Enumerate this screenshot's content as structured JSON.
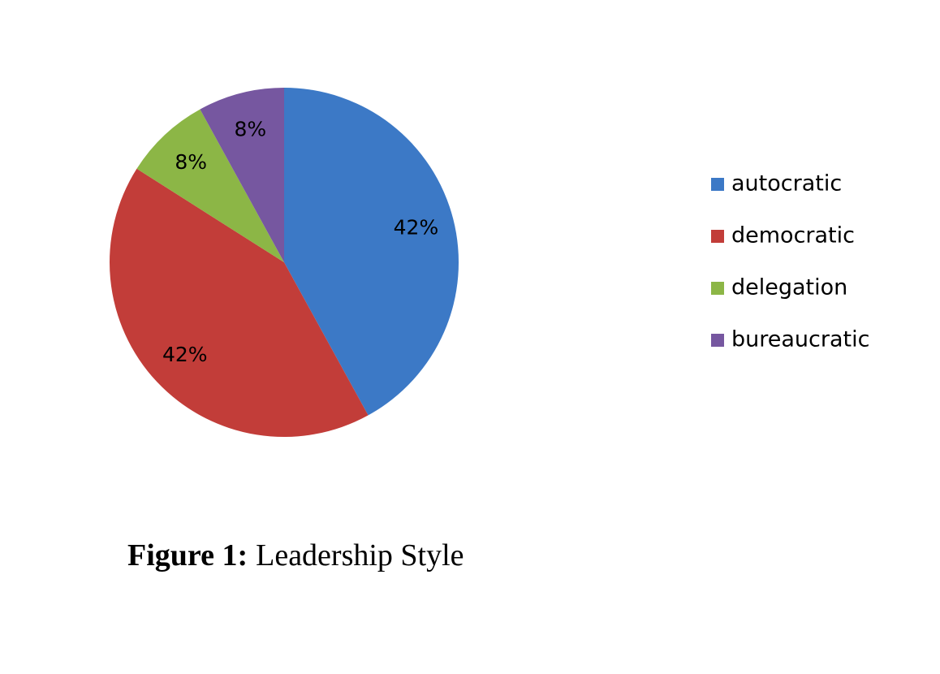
{
  "chart_data": {
    "type": "pie",
    "categories": [
      "autocratic",
      "democratic",
      "delegation",
      "bureaucratic"
    ],
    "values": [
      42,
      42,
      8,
      8
    ],
    "value_labels": [
      "42%",
      "42%",
      "8%",
      "8%"
    ],
    "colors": [
      "#3c79c6",
      "#c23d39",
      "#8cb646",
      "#7657a0"
    ],
    "legend": "right",
    "caption": {
      "label": "Figure 1:",
      "text": "Leadership Style"
    }
  }
}
